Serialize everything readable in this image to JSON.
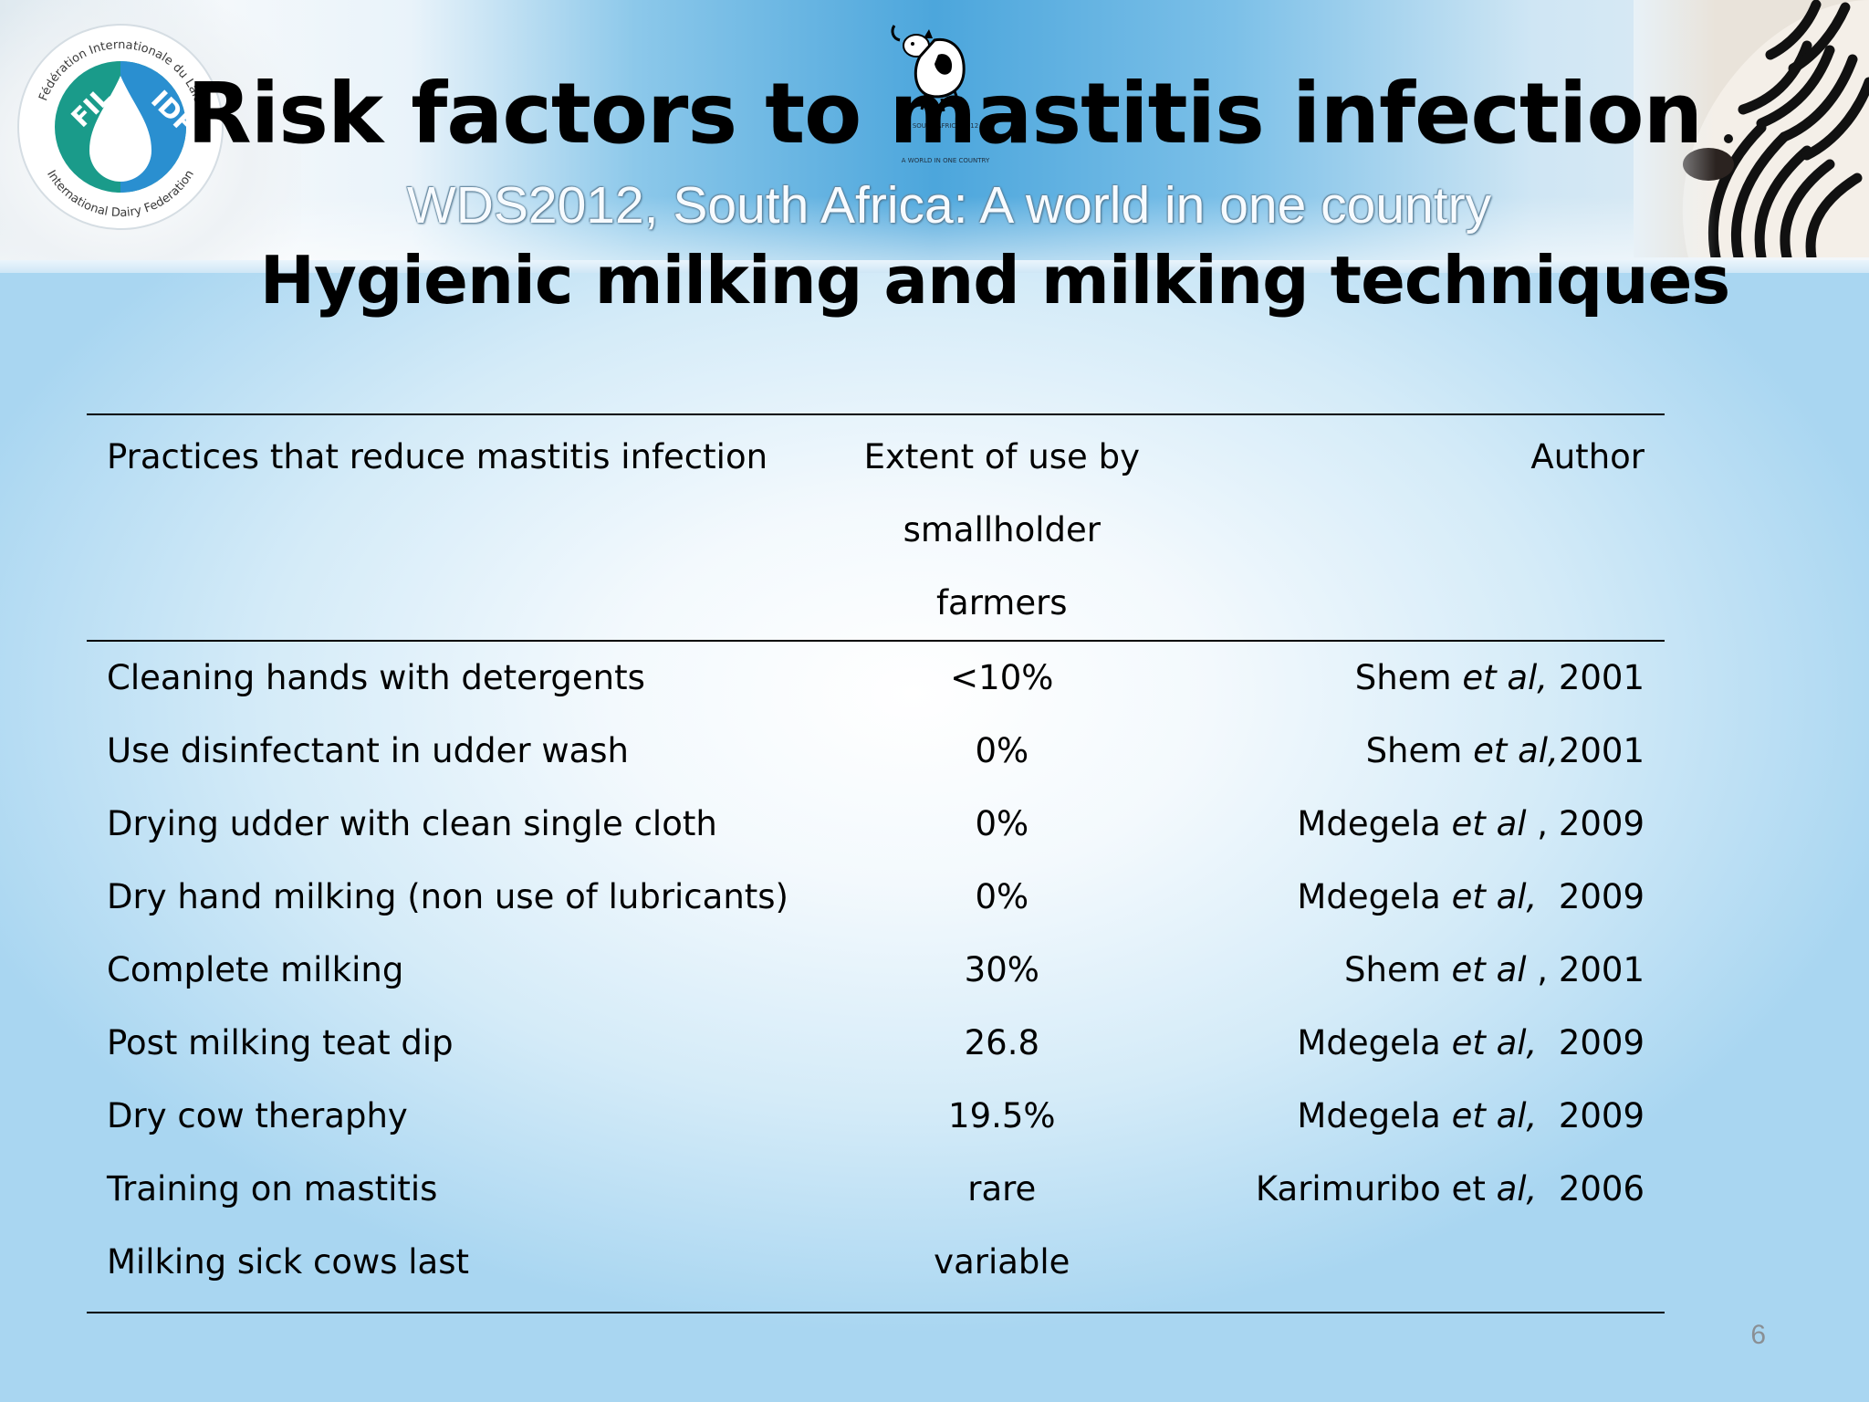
{
  "header": {
    "title": "Risk factors to mastitis infection",
    "banner_subtitle": "WDS2012, South Africa: A world in one country",
    "cow_caption_top": "SOUTH AFRICA 2012",
    "cow_caption": "A WORLD IN ONE COUNTRY",
    "logo_outer_text_top": "Fédération Internationale du Lait",
    "logo_outer_text_bottom": "International Dairy Federation",
    "logo_left": "FIL",
    "logo_right": "IDF"
  },
  "slide": {
    "heading": "Hygienic milking and milking techniques",
    "page_number": "6"
  },
  "table": {
    "headers": {
      "practice": "Practices that reduce mastitis infection",
      "extent_line1": "Extent of use by",
      "extent_line2": "smallholder farmers",
      "author": "Author"
    },
    "rows": [
      {
        "practice": "Cleaning hands with detergents",
        "extent": "<10%",
        "author_name": "Shem ",
        "author_etal": "et al,",
        "author_year": " 2001"
      },
      {
        "practice": "Use disinfectant in udder wash",
        "extent": "0%",
        "author_name": "Shem ",
        "author_etal": "et al,",
        "author_year": "2001"
      },
      {
        "practice": "Drying udder with clean single cloth",
        "extent": "0%",
        "author_name": "Mdegela ",
        "author_etal": "et al",
        "author_year": " , 2009"
      },
      {
        "practice": "Dry hand milking (non use of lubricants)",
        "extent": "0%",
        "author_name": "Mdegela ",
        "author_etal": "et al,",
        "author_year": "  2009"
      },
      {
        "practice": "Complete milking",
        "extent": "30%",
        "author_name": "Shem ",
        "author_etal": "et al",
        "author_year": " , 2001"
      },
      {
        "practice": "Post milking teat dip",
        "extent": "26.8",
        "author_name": "Mdegela ",
        "author_etal": "et al,",
        "author_year": "  2009"
      },
      {
        "practice": "Dry cow theraphy",
        "extent": "19.5%",
        "author_name": "Mdegela ",
        "author_etal": "et al,",
        "author_year": "  2009"
      },
      {
        "practice": "Training on mastitis",
        "extent": "rare",
        "author_name": "Karimuribo et ",
        "author_etal": "al,",
        "author_year": "  2006"
      },
      {
        "practice": "Milking sick cows last",
        "extent": "variable",
        "author_name": "",
        "author_etal": "",
        "author_year": ""
      }
    ]
  },
  "colors": {
    "logo_teal": "#1a9b8a",
    "logo_blue": "#2a8fd0",
    "banner_blue": "#4ca6dc"
  }
}
